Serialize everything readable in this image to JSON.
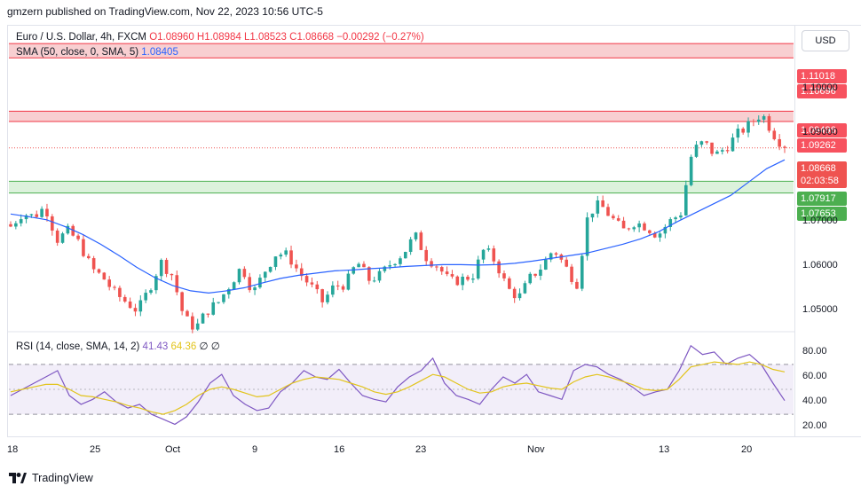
{
  "header": {
    "published_by": "gmzern published on TradingView.com, Nov 22, 2023 10:56 UTC-5"
  },
  "legend": {
    "symbol": "Euro / U.S. Dollar, 4h, FXCM",
    "ohlc": "O1.08960 H1.08984 L1.08523 C1.08668 −0.00292 (−0.27%)",
    "sma_label": "SMA (50, close, 0, SMA, 5)",
    "sma_value": "1.08405",
    "rsi_label": "RSI (14, close, SMA, 14, 2)",
    "rsi_value": "41.43",
    "rsi_ma_value": "64.36",
    "rsi_extra_1": "∅",
    "rsi_extra_2": "∅"
  },
  "currency": "USD",
  "price_tags": {
    "r1": "1.11018",
    "r2": "1.10696",
    "r3": "1.09496",
    "r4": "1.09262",
    "last_price": "1.08668",
    "countdown": "02:03:58",
    "s1": "1.07917",
    "s2": "1.07653"
  },
  "price_axis_labels": [
    "1.10000",
    "1.09000",
    "1.07000",
    "1.06000",
    "1.05000"
  ],
  "rsi_axis_labels": [
    "80.00",
    "60.00",
    "40.00",
    "20.00"
  ],
  "x_axis_labels": [
    "18",
    "25",
    "Oct",
    "9",
    "16",
    "23",
    "Nov",
    "13",
    "20"
  ],
  "footer": {
    "brand": "TradingView"
  },
  "colors": {
    "up": "#26a69a",
    "down": "#ef5350",
    "sma": "#2962ff",
    "rsi": "#7e57c2",
    "rsi_ma": "#e2c41c",
    "resistance_zone": "#f7c7c9",
    "support_zone": "#d6f0d6",
    "resistance_tag": "#f7525f",
    "support_tag": "#4caf50"
  },
  "chart_data": {
    "type": "candlestick",
    "timeframe": "4h",
    "ylim": [
      1.0455,
      1.114
    ],
    "horizontal_zones": [
      {
        "kind": "resistance",
        "from": 1.10696,
        "to": 1.11018
      },
      {
        "kind": "resistance",
        "from": 1.09262,
        "to": 1.09496
      },
      {
        "kind": "support",
        "from": 1.07653,
        "to": 1.07917
      }
    ],
    "last_close": 1.08668,
    "close_path": [
      1.069,
      1.072,
      1.0712,
      1.0735,
      1.066,
      1.068,
      1.065,
      1.0595,
      1.0575,
      1.054,
      1.052,
      1.05,
      1.055,
      1.061,
      1.058,
      1.0485,
      1.046,
      1.05,
      1.052,
      1.056,
      1.06,
      1.054,
      1.059,
      1.063,
      1.0625,
      1.0585,
      1.0555,
      1.052,
      1.0555,
      1.056,
      1.061,
      1.057,
      1.058,
      1.061,
      1.063,
      1.067,
      1.062,
      1.06,
      1.0565,
      1.057,
      1.058,
      1.064,
      1.061,
      1.055,
      1.053,
      1.0575,
      1.06,
      1.064,
      1.06,
      1.056,
      1.072,
      1.074,
      1.071,
      1.068,
      1.07,
      1.069,
      1.067,
      1.07,
      1.072,
      1.086,
      1.088,
      1.085,
      1.087,
      1.09,
      1.092,
      1.0945,
      1.09,
      1.0867
    ],
    "sma_path": [
      1.0718,
      1.0712,
      1.0705,
      1.069,
      1.0672,
      1.065,
      1.0625,
      1.0598,
      1.0575,
      1.0557,
      1.0545,
      1.054,
      1.0545,
      1.0552,
      1.0563,
      1.0573,
      1.058,
      1.0585,
      1.059,
      1.0592,
      1.0595,
      1.0597,
      1.06,
      1.0602,
      1.0604,
      1.0604,
      1.0603,
      1.0604,
      1.0607,
      1.0612,
      1.0618,
      1.0624,
      1.063,
      1.064,
      1.065,
      1.0662,
      1.0678,
      1.07,
      1.072,
      1.074,
      1.076,
      1.079,
      1.082,
      1.084
    ],
    "rsi": {
      "ylim": [
        13,
        92
      ],
      "bands": [
        30,
        50,
        70
      ],
      "series": [
        {
          "values": [
            45,
            50,
            55,
            60,
            65,
            45,
            38,
            42,
            48,
            40,
            35,
            38,
            30,
            26,
            22,
            28,
            40,
            55,
            62,
            45,
            38,
            33,
            35,
            48,
            55,
            65,
            60,
            58,
            66,
            55,
            45,
            42,
            40,
            52,
            60,
            65,
            75,
            55,
            45,
            42,
            38,
            50,
            60,
            55,
            62,
            48,
            45,
            42,
            65,
            70,
            68,
            62,
            58,
            52,
            45,
            48,
            50,
            65,
            85,
            78,
            80,
            70,
            75,
            78,
            70,
            55,
            41
          ]
        }
      ],
      "ma_series": [
        {
          "values": [
            48,
            50,
            52,
            54,
            54,
            50,
            45,
            44,
            42,
            40,
            37,
            35,
            32,
            30,
            33,
            38,
            45,
            50,
            52,
            50,
            47,
            44,
            45,
            50,
            55,
            58,
            60,
            59,
            58,
            55,
            52,
            48,
            46,
            48,
            52,
            57,
            62,
            60,
            55,
            50,
            47,
            48,
            52,
            54,
            55,
            53,
            51,
            50,
            56,
            60,
            62,
            60,
            57,
            54,
            50,
            49,
            50,
            58,
            68,
            70,
            72,
            71,
            70,
            72,
            70,
            66,
            64
          ]
        }
      ]
    }
  }
}
